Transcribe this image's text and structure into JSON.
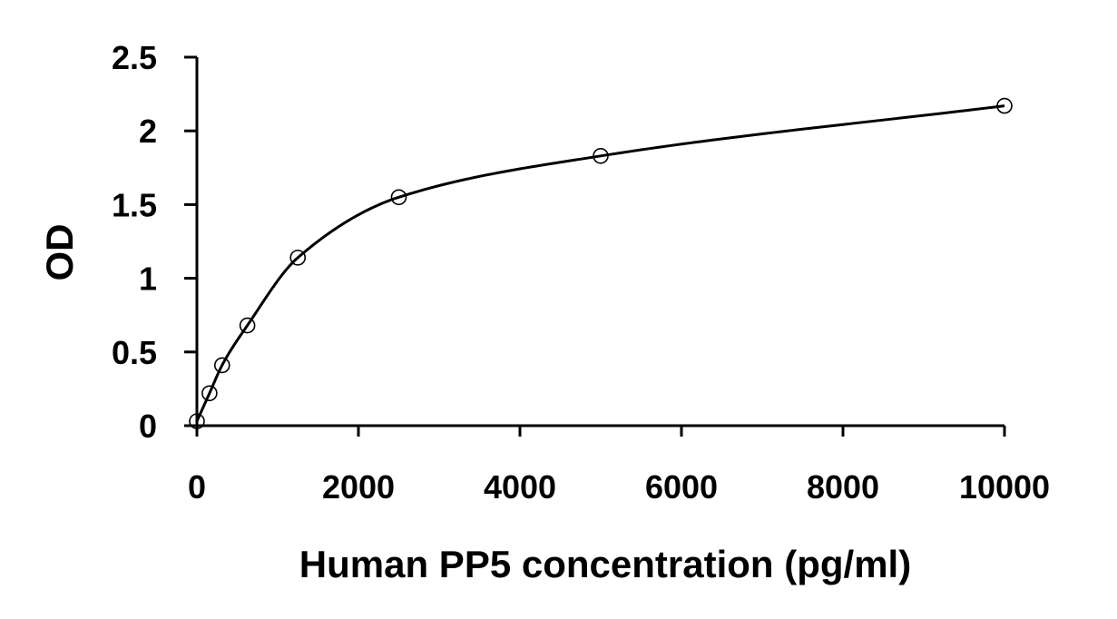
{
  "chart_data": {
    "type": "scatter",
    "title": "",
    "xlabel": "Human PP5 concentration (pg/ml)",
    "ylabel": "OD",
    "xlim": [
      0,
      10000
    ],
    "ylim": [
      0,
      2.5
    ],
    "x_ticks": [
      0,
      2000,
      4000,
      6000,
      8000,
      10000
    ],
    "x_tick_labels": [
      "0",
      "2000",
      "4000",
      "6000",
      "8000",
      "10000"
    ],
    "y_ticks": [
      0,
      0.5,
      1,
      1.5,
      2,
      2.5
    ],
    "y_tick_labels": [
      "0",
      "0.5",
      "1",
      "1.5",
      "2",
      "2.5"
    ],
    "grid": false,
    "legend": "none",
    "series": [
      {
        "marker": "open-circle",
        "x": [
          0,
          156,
          312,
          625,
          1250,
          2500,
          5000,
          10000
        ],
        "y": [
          0.03,
          0.22,
          0.41,
          0.68,
          1.14,
          1.55,
          1.83,
          2.17
        ]
      }
    ],
    "fit_curve": {
      "type": "smooth",
      "x": [
        0,
        156,
        312,
        625,
        1250,
        2500,
        5000,
        10000
      ],
      "y": [
        0.03,
        0.22,
        0.41,
        0.68,
        1.14,
        1.55,
        1.83,
        2.17
      ]
    },
    "colors": {
      "axis": "#000000",
      "curve": "#000000",
      "marker_stroke": "#000000",
      "marker_fill": "#ffffff"
    }
  }
}
